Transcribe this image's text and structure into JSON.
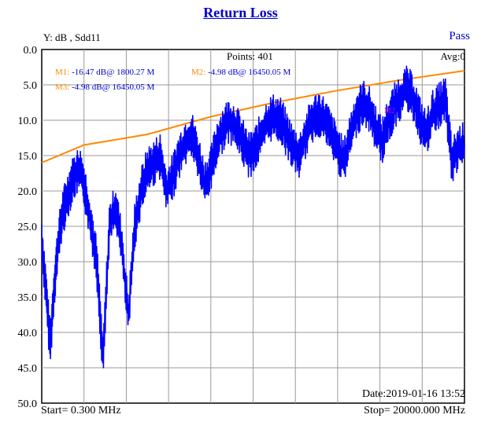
{
  "title": "Return  Loss",
  "y_label": "Y: dB , Sdd11",
  "status": "Pass",
  "points": "Points: 401",
  "avg": "Avg:0",
  "date": "Date:2019-01-16 13:52",
  "start": "Start= 0.300 MHz",
  "stop": "Stop=  20000.000 MHz",
  "markers": {
    "m1_tag": "M1:",
    "m1_value": " -16.47 dB@ 1800.27 M",
    "m2_tag": "M2:",
    "m2_value": " -4.98 dB@ 16450.05 M",
    "m3_tag": "M3:",
    "m3_value": " -4.98 dB@ 16450.05 M",
    "m2_plot_label": "M2"
  },
  "colors": {
    "trace": "#0000ff",
    "limit": "#ff8800",
    "grid": "#9a9a9a",
    "marker_label": "#cc00cc"
  },
  "chart_data": {
    "type": "line",
    "x_range_mhz": [
      0.3,
      20000
    ],
    "y_ticks": [
      "0.0",
      "5.0",
      "10.0",
      "15.0",
      "20.0",
      "25.0",
      "30.0",
      "35.0",
      "40.0",
      "45.0",
      "50.0"
    ],
    "ylim": [
      0,
      50
    ],
    "y_axis_inverted": true,
    "grid": true,
    "series": [
      {
        "role": "limit",
        "x": [
          0.3,
          2000,
          5000,
          8000,
          11000,
          14000,
          17000,
          20000
        ],
        "y": [
          16.0,
          13.5,
          12.0,
          9.5,
          7.5,
          5.8,
          4.3,
          3.0
        ]
      },
      {
        "role": "measurement",
        "x": [
          0.3,
          200,
          400,
          600,
          800,
          1000,
          1200,
          1400,
          1600,
          1800,
          2000,
          2300,
          2600,
          2900,
          3200,
          3500,
          3800,
          4100,
          4400,
          4700,
          5000,
          5300,
          5600,
          5900,
          6200,
          6500,
          6800,
          7100,
          7400,
          7700,
          8000,
          8300,
          8600,
          8900,
          9200,
          9500,
          9800,
          10100,
          10400,
          10700,
          11000,
          11300,
          11600,
          11900,
          12200,
          12500,
          12800,
          13100,
          13400,
          13700,
          14000,
          14300,
          14600,
          14900,
          15200,
          15500,
          15800,
          16100,
          16400,
          16700,
          17000,
          17300,
          17600,
          17900,
          18200,
          18500,
          18800,
          19100,
          19400,
          19700,
          20000
        ],
        "y": [
          27.0,
          34.0,
          42.0,
          33.0,
          27.0,
          23.0,
          21.0,
          19.0,
          17.5,
          17.0,
          19.0,
          24.0,
          30.0,
          44.0,
          25.0,
          22.0,
          28.0,
          38.0,
          25.0,
          20.0,
          17.0,
          16.0,
          15.0,
          20.0,
          18.0,
          15.0,
          13.0,
          12.0,
          15.0,
          19.0,
          17.0,
          13.0,
          11.0,
          10.0,
          11.0,
          13.0,
          15.0,
          14.0,
          12.0,
          10.0,
          9.5,
          10.0,
          12.0,
          14.0,
          15.0,
          12.0,
          10.0,
          9.0,
          10.0,
          12.0,
          14.0,
          16.0,
          12.0,
          9.0,
          7.5,
          8.5,
          11.0,
          13.0,
          10.0,
          8.0,
          6.5,
          5.5,
          7.0,
          10.0,
          12.0,
          9.0,
          8.0,
          7.0,
          16.0,
          14.0,
          13.5
        ]
      }
    ]
  }
}
